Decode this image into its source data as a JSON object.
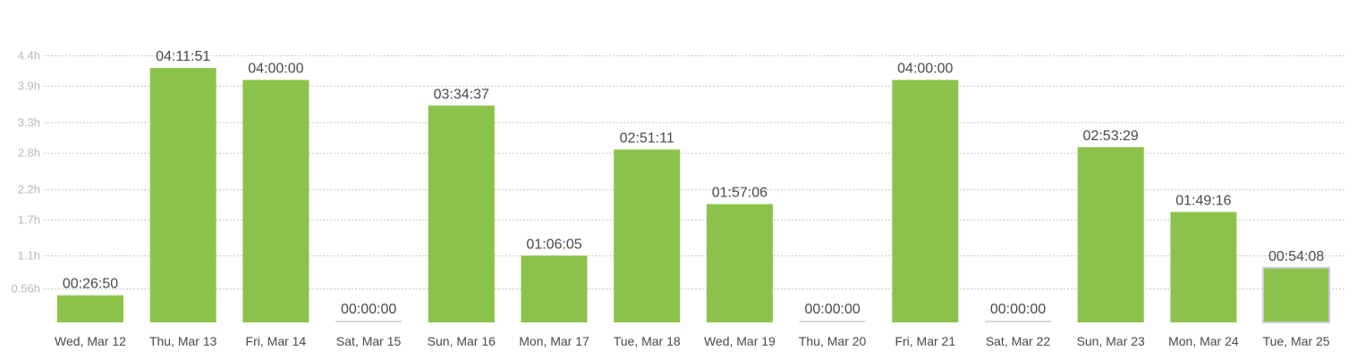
{
  "colors": {
    "bar": "#8bc34a",
    "zero_bar": "#d6d9dc",
    "selected_outline": "#c9ced3",
    "grid": "#c8c8c8",
    "tick_text": "#b9b9b9",
    "label_text": "#4a4a4a"
  },
  "chart_data": {
    "type": "bar",
    "title": "",
    "xlabel": "",
    "ylabel": "",
    "ylim": [
      0,
      4.45
    ],
    "y_tick_values": [
      0.56,
      1.1,
      1.7,
      2.2,
      2.8,
      3.3,
      3.9,
      4.4
    ],
    "y_tick_labels": [
      "0.56h",
      "1.1h",
      "1.7h",
      "2.2h",
      "2.8h",
      "3.3h",
      "3.9h",
      "4.4h"
    ],
    "grid": true,
    "categories": [
      "Wed, Mar 12",
      "Thu, Mar 13",
      "Fri, Mar 14",
      "Sat, Mar 15",
      "Sun, Mar 16",
      "Mon, Mar 17",
      "Tue, Mar 18",
      "Wed, Mar 19",
      "Thu, Mar 20",
      "Fri, Mar 21",
      "Sat, Mar 22",
      "Sun, Mar 23",
      "Mon, Mar 24",
      "Tue, Mar 25"
    ],
    "values": [
      0.4472,
      4.1975,
      4.0,
      0.0,
      3.5769,
      1.1014,
      2.8531,
      1.9517,
      0.0,
      4.0,
      0.0,
      2.8914,
      1.8211,
      0.9022
    ],
    "data_labels": [
      "00:26:50",
      "04:11:51",
      "04:00:00",
      "00:00:00",
      "03:34:37",
      "01:06:05",
      "02:51:11",
      "01:57:06",
      "00:00:00",
      "04:00:00",
      "00:00:00",
      "02:53:29",
      "01:49:16",
      "00:54:08"
    ],
    "selected_index": 13
  }
}
